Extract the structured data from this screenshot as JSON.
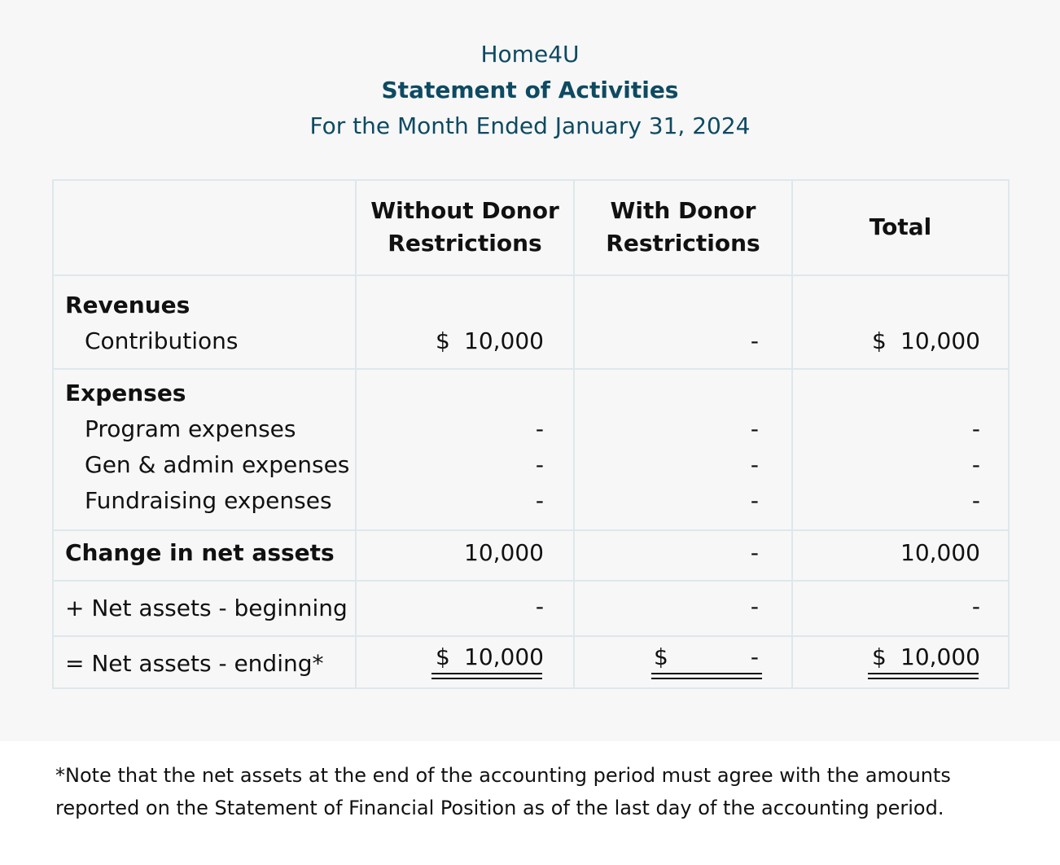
{
  "header": {
    "organization": "Home4U",
    "statement": "Statement of Activities",
    "period": "For the Month Ended January 31, 2024"
  },
  "columns": {
    "without_line1": "Without Donor",
    "without_line2": "Restrictions",
    "with_line1": "With Donor",
    "with_line2": "Restrictions",
    "total": "Total"
  },
  "rows": {
    "revenues": {
      "heading": "Revenues",
      "contributions": {
        "label": "Contributions",
        "without": "10,000",
        "with": "-",
        "total": "10,000",
        "currency": "$"
      }
    },
    "expenses": {
      "heading": "Expenses",
      "program": {
        "label": "Program expenses",
        "without": "-",
        "with": "-",
        "total": "-"
      },
      "gen_admin": {
        "label": "Gen & admin expenses",
        "without": "-",
        "with": "-",
        "total": "-"
      },
      "fundraising": {
        "label": "Fundraising expenses",
        "without": "-",
        "with": "-",
        "total": "-"
      }
    },
    "change": {
      "label": "Change in net assets",
      "without": "10,000",
      "with": "-",
      "total": "10,000"
    },
    "beginning": {
      "label": "+ Net assets - beginning",
      "without": "-",
      "with": "-",
      "total": "-"
    },
    "ending": {
      "label": "= Net assets - ending*",
      "without": "10,000",
      "with": "-",
      "total": "10,000",
      "currency": "$"
    }
  },
  "footnote": "*Note that the net assets at the end of the accounting period must agree with the amounts reported on the Statement of Financial Position as of the last day of the accounting period."
}
